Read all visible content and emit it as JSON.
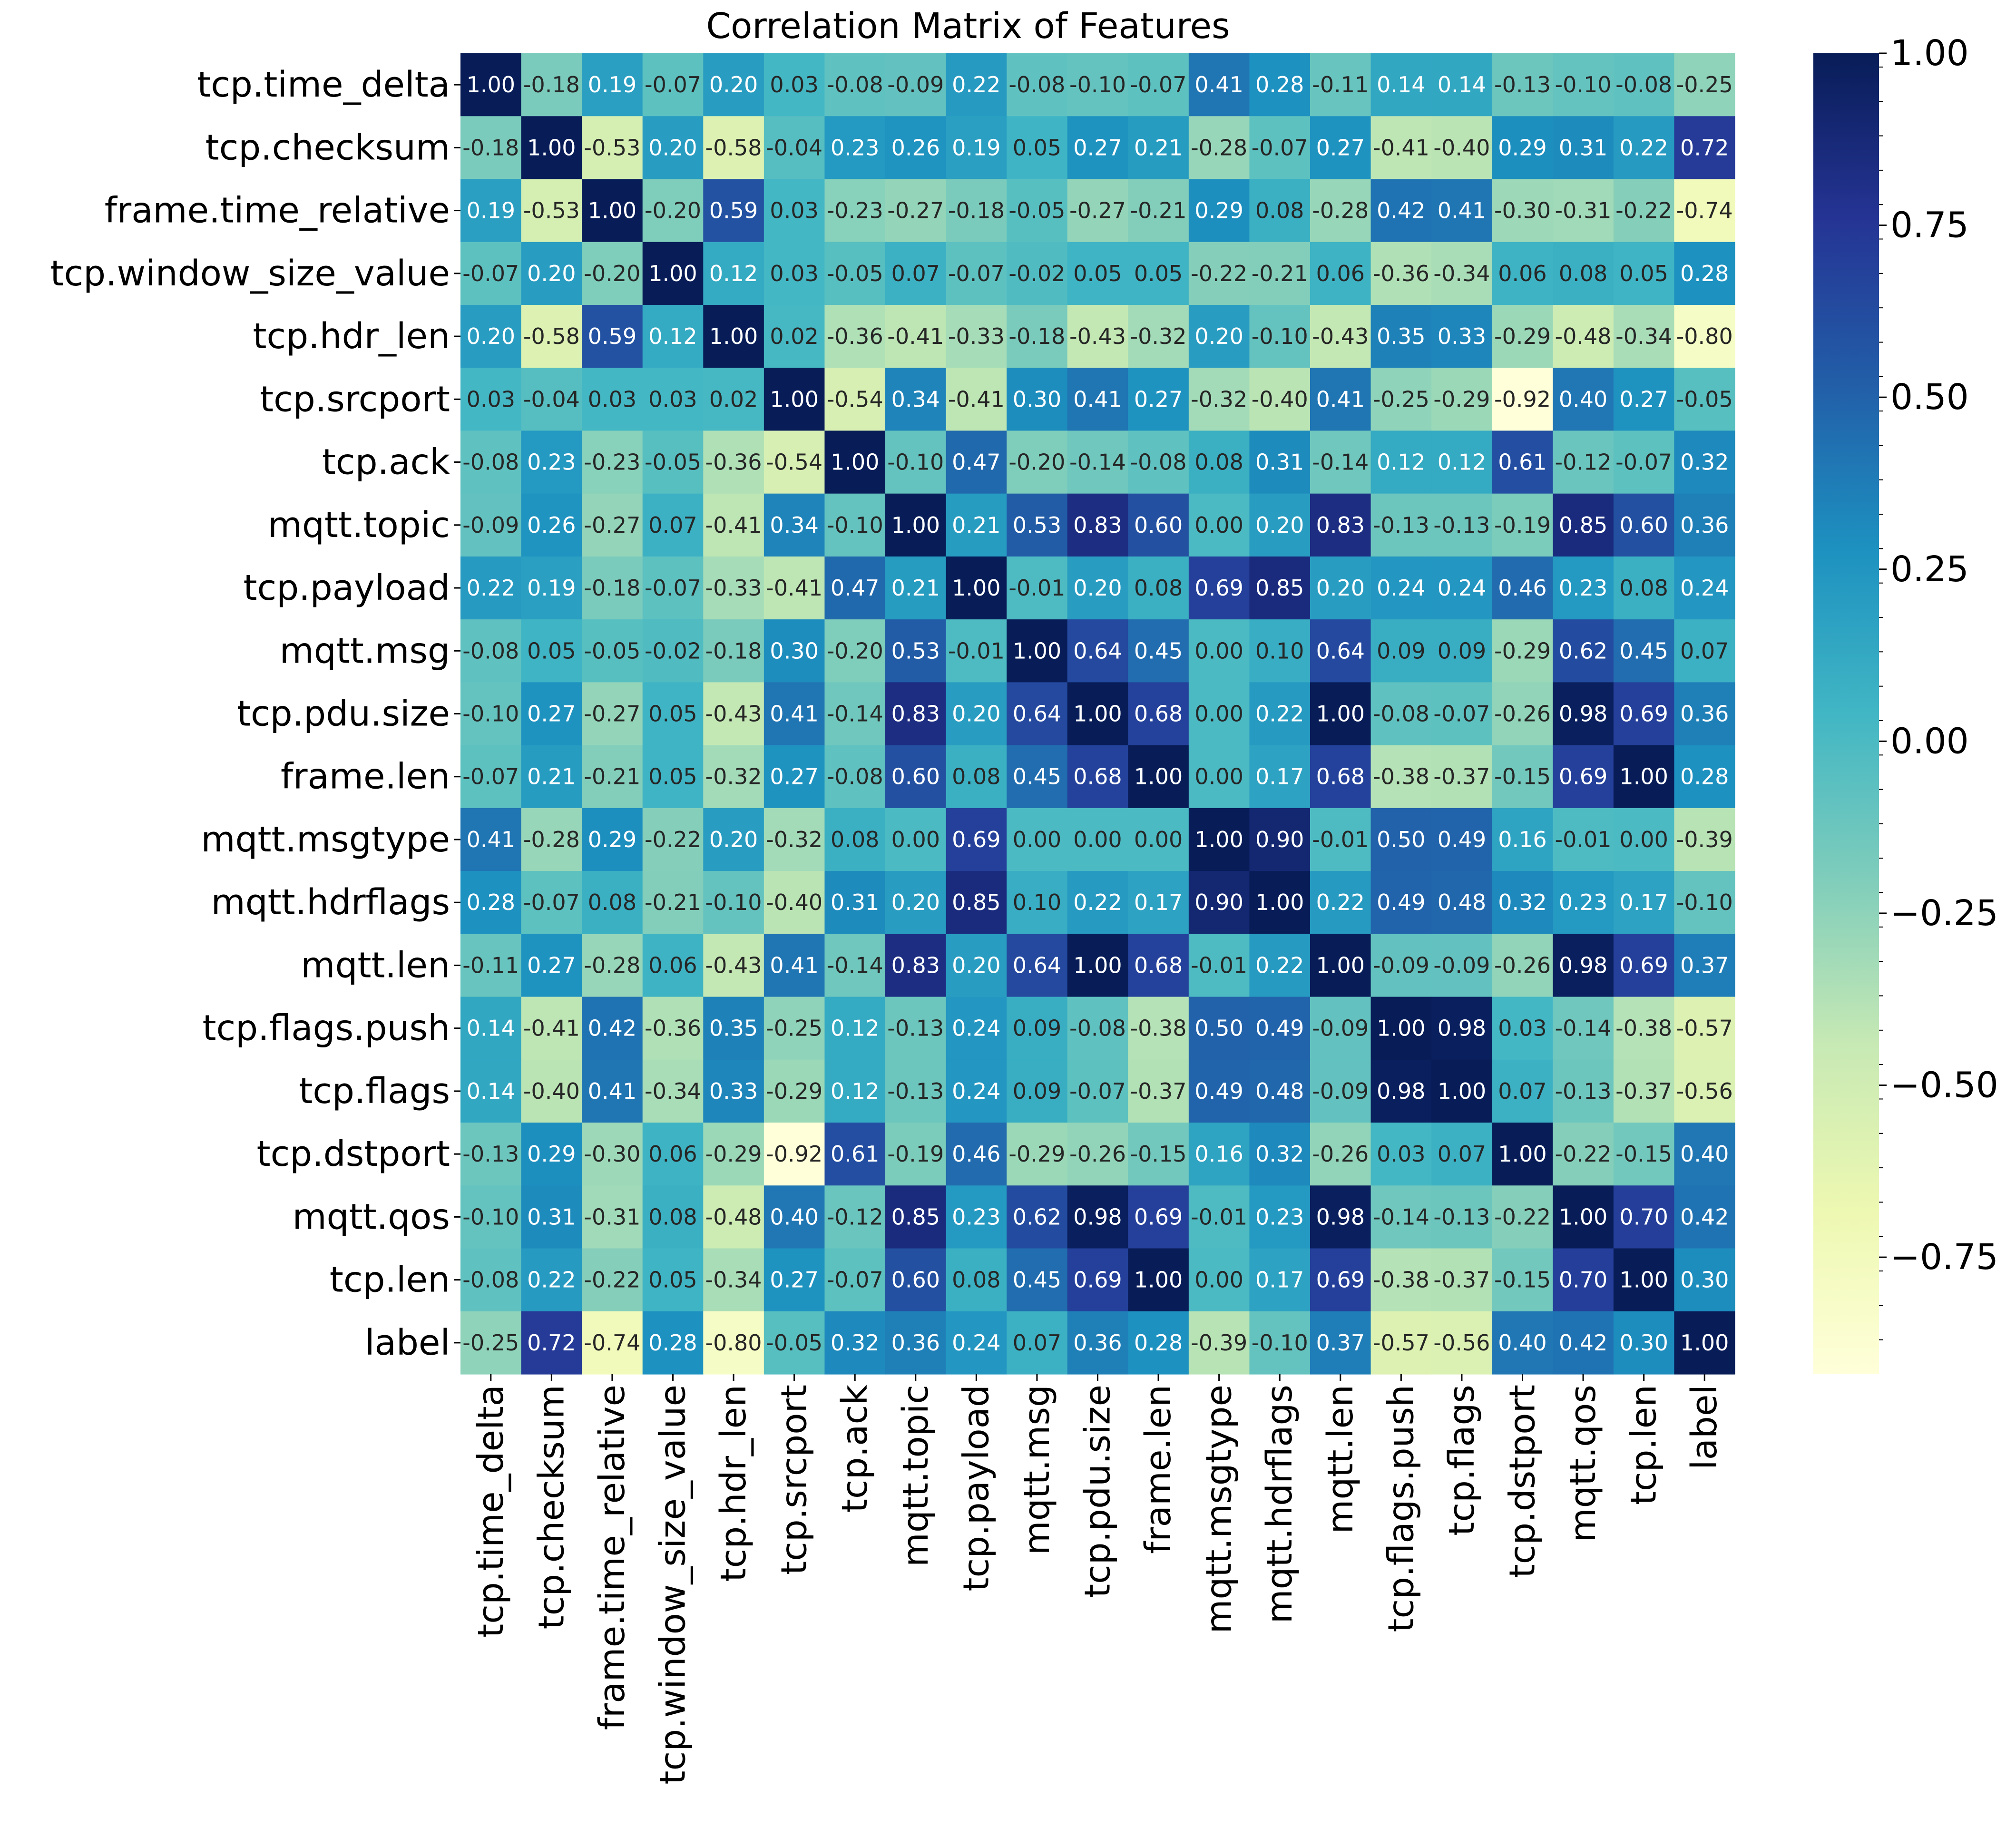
{
  "chart_data": {
    "type": "heatmap",
    "title": "Correlation Matrix of Features",
    "labels": [
      "tcp.time_delta",
      "tcp.checksum",
      "frame.time_relative",
      "tcp.window_size_value",
      "tcp.hdr_len",
      "tcp.srcport",
      "tcp.ack",
      "mqtt.topic",
      "tcp.payload",
      "mqtt.msg",
      "tcp.pdu.size",
      "frame.len",
      "mqtt.msgtype",
      "mqtt.hdrflags",
      "mqtt.len",
      "tcp.flags.push",
      "tcp.flags",
      "tcp.dstport",
      "mqtt.qos",
      "tcp.len",
      "label"
    ],
    "values": [
      [
        1.0,
        -0.18,
        0.19,
        -0.07,
        0.2,
        0.03,
        -0.08,
        -0.09,
        0.22,
        -0.08,
        -0.1,
        -0.07,
        0.41,
        0.28,
        -0.11,
        0.14,
        0.14,
        -0.13,
        -0.1,
        -0.08,
        -0.25
      ],
      [
        -0.18,
        1.0,
        -0.53,
        0.2,
        -0.58,
        -0.04,
        0.23,
        0.26,
        0.19,
        0.05,
        0.27,
        0.21,
        -0.28,
        -0.07,
        0.27,
        -0.41,
        -0.4,
        0.29,
        0.31,
        0.22,
        0.72
      ],
      [
        0.19,
        -0.53,
        1.0,
        -0.2,
        0.59,
        0.03,
        -0.23,
        -0.27,
        -0.18,
        -0.05,
        -0.27,
        -0.21,
        0.29,
        0.08,
        -0.28,
        0.42,
        0.41,
        -0.3,
        -0.31,
        -0.22,
        -0.74
      ],
      [
        -0.07,
        0.2,
        -0.2,
        1.0,
        0.12,
        0.03,
        -0.05,
        0.07,
        -0.07,
        -0.02,
        0.05,
        0.05,
        -0.22,
        -0.21,
        0.06,
        -0.36,
        -0.34,
        0.06,
        0.08,
        0.05,
        0.28
      ],
      [
        0.2,
        -0.58,
        0.59,
        0.12,
        1.0,
        0.02,
        -0.36,
        -0.41,
        -0.33,
        -0.18,
        -0.43,
        -0.32,
        0.2,
        -0.1,
        -0.43,
        0.35,
        0.33,
        -0.29,
        -0.48,
        -0.34,
        -0.8
      ],
      [
        0.03,
        -0.04,
        0.03,
        0.03,
        0.02,
        1.0,
        -0.54,
        0.34,
        -0.41,
        0.3,
        0.41,
        0.27,
        -0.32,
        -0.4,
        0.41,
        -0.25,
        -0.29,
        -0.92,
        0.4,
        0.27,
        -0.05
      ],
      [
        -0.08,
        0.23,
        -0.23,
        -0.05,
        -0.36,
        -0.54,
        1.0,
        -0.1,
        0.47,
        -0.2,
        -0.14,
        -0.08,
        0.08,
        0.31,
        -0.14,
        0.12,
        0.12,
        0.61,
        -0.12,
        -0.07,
        0.32
      ],
      [
        -0.09,
        0.26,
        -0.27,
        0.07,
        -0.41,
        0.34,
        -0.1,
        1.0,
        0.21,
        0.53,
        0.83,
        0.6,
        -0.0,
        0.2,
        0.83,
        -0.13,
        -0.13,
        -0.19,
        0.85,
        0.6,
        0.36
      ],
      [
        0.22,
        0.19,
        -0.18,
        -0.07,
        -0.33,
        -0.41,
        0.47,
        0.21,
        1.0,
        -0.01,
        0.2,
        0.08,
        0.69,
        0.85,
        0.2,
        0.24,
        0.24,
        0.46,
        0.23,
        0.08,
        0.24
      ],
      [
        -0.08,
        0.05,
        -0.05,
        -0.02,
        -0.18,
        0.3,
        -0.2,
        0.53,
        -0.01,
        1.0,
        0.64,
        0.45,
        -0.0,
        0.1,
        0.64,
        0.09,
        0.09,
        -0.29,
        0.62,
        0.45,
        0.07
      ],
      [
        -0.1,
        0.27,
        -0.27,
        0.05,
        -0.43,
        0.41,
        -0.14,
        0.83,
        0.2,
        0.64,
        1.0,
        0.68,
        -0.0,
        0.22,
        1.0,
        -0.08,
        -0.07,
        -0.26,
        0.98,
        0.69,
        0.36
      ],
      [
        -0.07,
        0.21,
        -0.21,
        0.05,
        -0.32,
        0.27,
        -0.08,
        0.6,
        0.08,
        0.45,
        0.68,
        1.0,
        0.0,
        0.17,
        0.68,
        -0.38,
        -0.37,
        -0.15,
        0.69,
        1.0,
        0.28
      ],
      [
        0.41,
        -0.28,
        0.29,
        -0.22,
        0.2,
        -0.32,
        0.08,
        -0.0,
        0.69,
        -0.0,
        -0.0,
        0.0,
        1.0,
        0.9,
        -0.01,
        0.5,
        0.49,
        0.16,
        -0.01,
        -0.0,
        -0.39
      ],
      [
        0.28,
        -0.07,
        0.08,
        -0.21,
        -0.1,
        -0.4,
        0.31,
        0.2,
        0.85,
        0.1,
        0.22,
        0.17,
        0.9,
        1.0,
        0.22,
        0.49,
        0.48,
        0.32,
        0.23,
        0.17,
        -0.1
      ],
      [
        -0.11,
        0.27,
        -0.28,
        0.06,
        -0.43,
        0.41,
        -0.14,
        0.83,
        0.2,
        0.64,
        1.0,
        0.68,
        -0.01,
        0.22,
        1.0,
        -0.09,
        -0.09,
        -0.26,
        0.98,
        0.69,
        0.37
      ],
      [
        0.14,
        -0.41,
        0.42,
        -0.36,
        0.35,
        -0.25,
        0.12,
        -0.13,
        0.24,
        0.09,
        -0.08,
        -0.38,
        0.5,
        0.49,
        -0.09,
        1.0,
        0.98,
        0.03,
        -0.14,
        -0.38,
        -0.57
      ],
      [
        0.14,
        -0.4,
        0.41,
        -0.34,
        0.33,
        -0.29,
        0.12,
        -0.13,
        0.24,
        0.09,
        -0.07,
        -0.37,
        0.49,
        0.48,
        -0.09,
        0.98,
        1.0,
        0.07,
        -0.13,
        -0.37,
        -0.56
      ],
      [
        -0.13,
        0.29,
        -0.3,
        0.06,
        -0.29,
        -0.92,
        0.61,
        -0.19,
        0.46,
        -0.29,
        -0.26,
        -0.15,
        0.16,
        0.32,
        -0.26,
        0.03,
        0.07,
        1.0,
        -0.22,
        -0.15,
        0.4
      ],
      [
        -0.1,
        0.31,
        -0.31,
        0.08,
        -0.48,
        0.4,
        -0.12,
        0.85,
        0.23,
        0.62,
        0.98,
        0.69,
        -0.01,
        0.23,
        0.98,
        -0.14,
        -0.13,
        -0.22,
        1.0,
        0.7,
        0.42
      ],
      [
        -0.08,
        0.22,
        -0.22,
        0.05,
        -0.34,
        0.27,
        -0.07,
        0.6,
        0.08,
        0.45,
        0.69,
        1.0,
        -0.0,
        0.17,
        0.69,
        -0.38,
        -0.37,
        -0.15,
        0.7,
        1.0,
        0.3
      ],
      [
        -0.25,
        0.72,
        -0.74,
        0.28,
        -0.8,
        -0.05,
        0.32,
        0.36,
        0.24,
        0.07,
        0.36,
        0.28,
        -0.39,
        -0.1,
        0.37,
        -0.57,
        -0.56,
        0.4,
        0.42,
        0.3,
        1.0
      ]
    ],
    "colorbar": {
      "vmin": -0.92,
      "vmax": 1.0,
      "ticks": [
        1.0,
        0.75,
        0.5,
        0.25,
        0.0,
        -0.25,
        -0.5,
        -0.75
      ],
      "tick_labels": [
        "1.00",
        "0.75",
        "0.50",
        "0.25",
        "0.00",
        "−0.25",
        "−0.50",
        "−0.75"
      ],
      "colormap": "YlGnBu",
      "colormap_stops": [
        "#ffffd9",
        "#edf8b1",
        "#c7e9b4",
        "#7fcdbb",
        "#41b6c4",
        "#1d91c0",
        "#225ea8",
        "#253494",
        "#081d58"
      ]
    }
  }
}
